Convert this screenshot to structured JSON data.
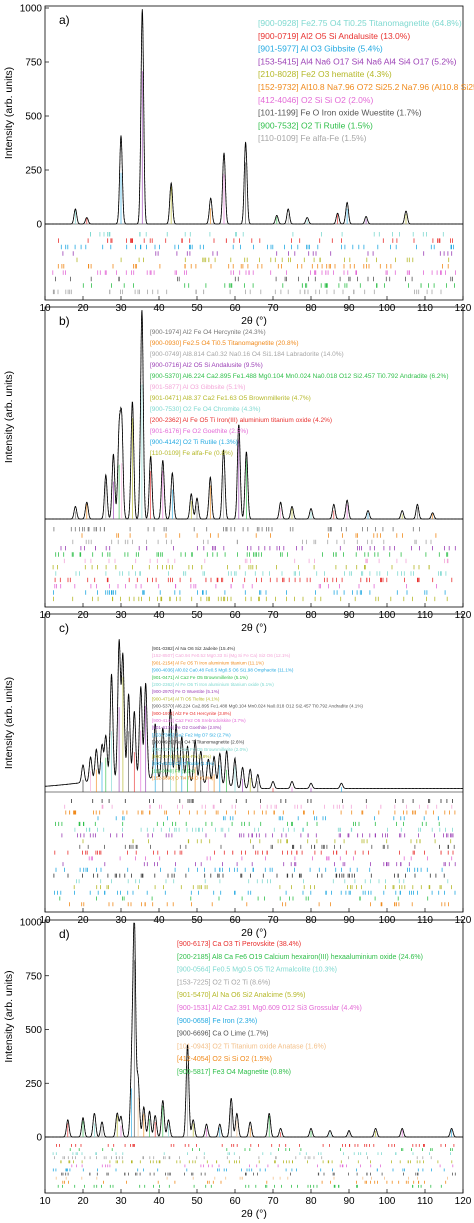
{
  "panels": [
    {
      "id": "a",
      "label": "a)",
      "xlabel": "2θ (°)",
      "ylabel": "Intensity (arb. units)",
      "xlim": [
        10,
        120
      ],
      "ylim": [
        0,
        1000
      ],
      "xticks": [
        "10",
        "20",
        "30",
        "40",
        "50",
        "60",
        "70",
        "80",
        "90",
        "100",
        "110",
        "120"
      ],
      "yticks": [
        "0",
        "250",
        "500",
        "750",
        "1000"
      ],
      "legend": [
        {
          "text": "[900-0928] Fe2.75 O4 Ti0.25  Titanomagnetite (64.8%)",
          "color": "#7fd9d0"
        },
        {
          "text": "[900-0719] Al2 O5 Si  Andalusite (13.0%)",
          "color": "#e8312f"
        },
        {
          "text": "[901-5977] Al O3  Gibbsite (5.4%)",
          "color": "#24a9e1"
        },
        {
          "text": "[153-5415] Al4 Na6 O17 Si4 Na6 Al4 Si4 O17 (5.2%)",
          "color": "#9b3fb5"
        },
        {
          "text": "[210-8028] Fe2 O3 hematite (4.3%)",
          "color": "#b5b829"
        },
        {
          "text": "[152-9732] Al10.8 Na7.96 O72 Si25.2 Na7.96 (Al10.8 Si25.2 O72) (2.6%)",
          "color": "#f08a1c"
        },
        {
          "text": "[412-4046] O2 Si Si O2 (2.0%)",
          "color": "#e36ad6"
        },
        {
          "text": "[101-1199] Fe O Iron oxide Wuestite (1.7%)",
          "color": "#555555"
        },
        {
          "text": "[900-7532] O2 Ti  Rutile (1.5%)",
          "color": "#2fbf4a"
        },
        {
          "text": "[110-0109] Fe alfa-Fe (1.5%)",
          "color": "#a6a6a6"
        }
      ]
    },
    {
      "id": "b",
      "label": "b)",
      "xlabel": "2θ (°)",
      "ylabel": "Intensity (arb. units)",
      "xlim": [
        10,
        120
      ],
      "xticks": [
        "10",
        "20",
        "30",
        "40",
        "50",
        "60",
        "70",
        "80",
        "90",
        "100",
        "110",
        "120"
      ],
      "legend": [
        {
          "text": "[900-1974] Al2 Fe O4  Hercynite (24.3%)",
          "color": "#777777"
        },
        {
          "text": "[900-0930] Fe2.5 O4 Ti0.5  Titanomagnetite (20.8%)",
          "color": "#f08a1c"
        },
        {
          "text": "[900-0749] Al8.814 Ca0.32 Na0.16 O4 Si1.184  Labradorite (14.0%)",
          "color": "#a6a6a6"
        },
        {
          "text": "[900-0716] Al2 O5 Si  Andalusite (9.5%)",
          "color": "#9b3fb5"
        },
        {
          "text": "[900-5370] Al6.224 Ca2.895 Fe1.488 Mg0.104 Mn0.024 Na0.018 O12 Si2.457 Ti0.792  Andradite (6.2%)",
          "color": "#2fbf4a"
        },
        {
          "text": "[901-5877] Al O3  Gibbsite (5.1%)",
          "color": "#f3a6d8"
        },
        {
          "text": "[901-0471] Al8.37 Ca2 Fe1.63 O5  Brownmillerite (4.7%)",
          "color": "#b5b829"
        },
        {
          "text": "[900-7530] O2 Fe O4  Chromite (4.3%)",
          "color": "#7fd9d0"
        },
        {
          "text": "[200-2362] Al Fe O5 Ti Iron(III) aluminium titanium oxide (4.2%)",
          "color": "#e8312f"
        },
        {
          "text": "[901-6176] Fe O2  Goethite (2.5%)",
          "color": "#e36ad6"
        },
        {
          "text": "[900-4142] O2 Ti  Rutile (1.3%)",
          "color": "#24a9e1"
        },
        {
          "text": "[110-0109] Fe alfa-Fe (0.8%)",
          "color": "#b5b829"
        }
      ]
    },
    {
      "id": "c",
      "label": "c)",
      "xlabel": "2θ (°)",
      "ylabel": "Intensity (arb. units)",
      "xlim": [
        10,
        120
      ],
      "xticks": [
        "10",
        "20",
        "30",
        "40",
        "50",
        "60",
        "70",
        "80",
        "90",
        "100",
        "110",
        "120"
      ],
      "legend": [
        {
          "text": "[901-0382] Al Na O6 Si2  Jadeite (15.4%)",
          "color": "#333333"
        },
        {
          "text": "[152-8507] Ca0.94 Fe0.52 Mg0.33 Si (Mg Si Fe Ca) Si2 O6 (12.1%)",
          "color": "#f3a6d8"
        },
        {
          "text": "[901-2154] Al Fe O5 Ti Iron aluminium titanium (11.1%)",
          "color": "#f08a1c"
        },
        {
          "text": "[900-4036] Al0.02 Ca0.48 Fe0.5 Mg0.5 O6 Si1.98  Omphacite (11.1%)",
          "color": "#24a9e1"
        },
        {
          "text": "[901-0471] Al Ca2 Fe O5  Brownmillerite (5.1%)",
          "color": "#2fbf4a"
        },
        {
          "text": "[200-2362] Al Fe O5 Ti Iron aluminium titanium oxide (5.1%)",
          "color": "#7fd9d0"
        },
        {
          "text": "[900-2970] Fe O  Wuestite (5.1%)",
          "color": "#9b3fb5"
        },
        {
          "text": "[900-4714] Al Ti O5  Tielite (4.1%)",
          "color": "#b5b829"
        },
        {
          "text": "[900-5370] Al6.224 Ca2.895 Fe1.488 Mg0.104 Mn0.024 Na0.018 O12 Si2.457 Ti0.792  Andradite (4.1%)",
          "color": "#555555"
        },
        {
          "text": "[900-1974] Al2 Fe O4  Hercynite (3.8%)",
          "color": "#e8312f"
        },
        {
          "text": "[900-4142] Ca2 Fe2 O5  Srebrodolskite (3.7%)",
          "color": "#e36ad6"
        },
        {
          "text": "[901-6176] Fe O2  Goethite (2.8%)",
          "color": "#9b3fb5"
        },
        {
          "text": "[153-7305] Ca2 Fe2 Mg O7 Si2 (2.7%)",
          "color": "#24a9e1"
        },
        {
          "text": "[900-0929] Fe2 O4 Ti  Titanomagnetite (2.6%)",
          "color": "#333333"
        },
        {
          "text": "[900-5370] Al Ca2 Fe O5  Brownmillerite (2.0%)",
          "color": "#7fd9d0"
        },
        {
          "text": "[900-1974] Fe alfa-Fe (1.8%)",
          "color": "#b5b829"
        },
        {
          "text": "[900-4142] O2 Ti  Rutile (1.5%)",
          "color": "#24a9e1"
        },
        {
          "text": "[110-0040] Fe (1.0%)",
          "color": "#2fbf4a"
        },
        {
          "text": "[152-6690] O Ti4 Ti4 O (0.8%)",
          "color": "#f08a1c"
        }
      ]
    },
    {
      "id": "d",
      "label": "d)",
      "xlabel": "2θ (°)",
      "ylabel": "Intensity (arb. units)",
      "xlim": [
        10,
        120
      ],
      "ylim": [
        0,
        1000
      ],
      "xticks": [
        "10",
        "20",
        "30",
        "40",
        "50",
        "60",
        "70",
        "80",
        "90",
        "100",
        "110",
        "120"
      ],
      "yticks": [
        "0",
        "250",
        "500",
        "750",
        "1000"
      ],
      "legend": [
        {
          "text": "[900-6173] Ca O3 Ti  Perovskite (38.4%)",
          "color": "#e8312f"
        },
        {
          "text": "[200-2185] Al8 Ca Fe6 O19 Calcium hexairon(III) hexaaluminium oxide (24.6%)",
          "color": "#2fbf4a"
        },
        {
          "text": "[900-0564] Fe0.5 Mg0.5 O5 Ti2  Armalcolite (10.3%)",
          "color": "#7fd9d0"
        },
        {
          "text": "[153-7225] O2 Ti O2 Ti (8.6%)",
          "color": "#a6a6a6"
        },
        {
          "text": "[901-5470] Al Na O6 Si2  Analcime (5.9%)",
          "color": "#b5b829"
        },
        {
          "text": "[900-1531] Al2 Ca2.391 Mg0.609 O12 Si3  Grossular (4.4%)",
          "color": "#e36ad6"
        },
        {
          "text": "[900-0658] Fe  Iron (2.3%)",
          "color": "#24a9e1"
        },
        {
          "text": "[900-6696] Ca O  Lime (1.7%)",
          "color": "#555555"
        },
        {
          "text": "[101-0943] O2 Ti Titanium oxide Anatase (1.6%)",
          "color": "#f3c08a"
        },
        {
          "text": "[412-4054] O2 Si Si O2 (1.5%)",
          "color": "#f08a1c"
        },
        {
          "text": "[900-5817] Fe3 O4  Magnetite (0.8%)",
          "color": "#2fbf4a"
        }
      ]
    }
  ]
}
